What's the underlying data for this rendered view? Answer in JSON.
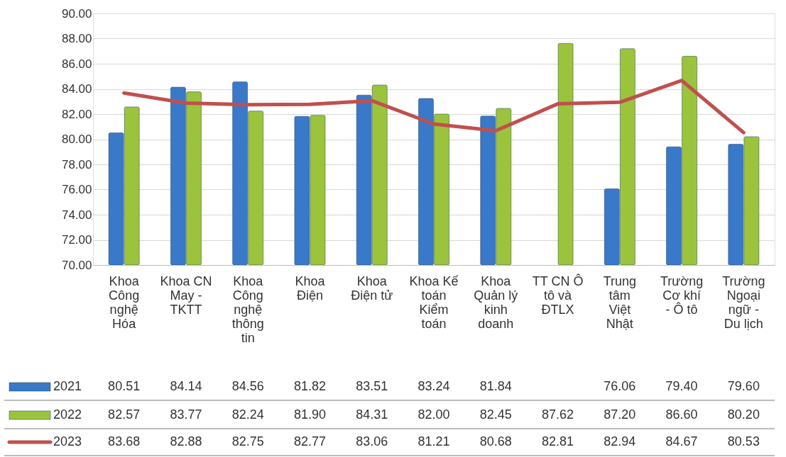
{
  "chart_data": {
    "type": "bar",
    "categories": [
      "Khoa Công nghệ Hóa",
      "Khoa CN May - TKTT",
      "Khoa Công nghệ thông tin",
      "Khoa Điện",
      "Khoa Điện tử",
      "Khoa Kế toán Kiểm toán",
      "Khoa Quản lý kinh doanh",
      "TT CN Ô tô và ĐTLX",
      "Trung tâm Việt Nhật",
      "Trường Cơ khí - Ô tô",
      "Trường Ngoại ngữ - Du lịch"
    ],
    "series": [
      {
        "name": "2021",
        "color": "#3a78c9",
        "values": [
          80.51,
          84.14,
          84.56,
          81.82,
          83.51,
          83.24,
          81.84,
          null,
          76.06,
          79.4,
          79.6
        ],
        "value_labels": [
          "80.51",
          "84.14",
          "84.56",
          "81.82",
          "83.51",
          "83.24",
          "81.84",
          null,
          "76.06",
          "79.40",
          "79.60"
        ]
      },
      {
        "name": "2022",
        "color": "#9bc43c",
        "values": [
          82.57,
          83.77,
          82.24,
          81.9,
          84.31,
          82.0,
          82.45,
          87.62,
          87.2,
          86.6,
          80.2
        ],
        "value_labels": [
          "82.57",
          "83.77",
          "82.24",
          "81.90",
          "84.31",
          "82.00",
          "82.45",
          "87.62",
          "87.20",
          "86.60",
          "80.20"
        ]
      },
      {
        "name": "2023",
        "color": "#c0504d",
        "type": "line",
        "line_style": "solid",
        "values": [
          83.68,
          82.88,
          82.75,
          82.77,
          83.06,
          81.21,
          80.68,
          82.81,
          82.94,
          84.67,
          80.53
        ],
        "value_labels": [
          "83.68",
          "82.88",
          "82.75",
          "82.77",
          "83.06",
          "81.21",
          "80.68",
          "82.81",
          "82.94",
          "84.67",
          "80.53"
        ]
      }
    ],
    "ylim": [
      70,
      90
    ],
    "yticks": [
      {
        "value": 70,
        "label": "70.00"
      },
      {
        "value": 72,
        "label": "72.00"
      },
      {
        "value": 74,
        "label": "74.00"
      },
      {
        "value": 76,
        "label": "76.00"
      },
      {
        "value": 78,
        "label": "78.00"
      },
      {
        "value": 80,
        "label": "80.00"
      },
      {
        "value": 82,
        "label": "82.00"
      },
      {
        "value": 84,
        "label": "84.00"
      },
      {
        "value": 86,
        "label": "86.00"
      },
      {
        "value": 88,
        "label": "88.00"
      },
      {
        "value": 90,
        "label": "90.00"
      }
    ],
    "grid": "y",
    "legend": "bottom left"
  }
}
